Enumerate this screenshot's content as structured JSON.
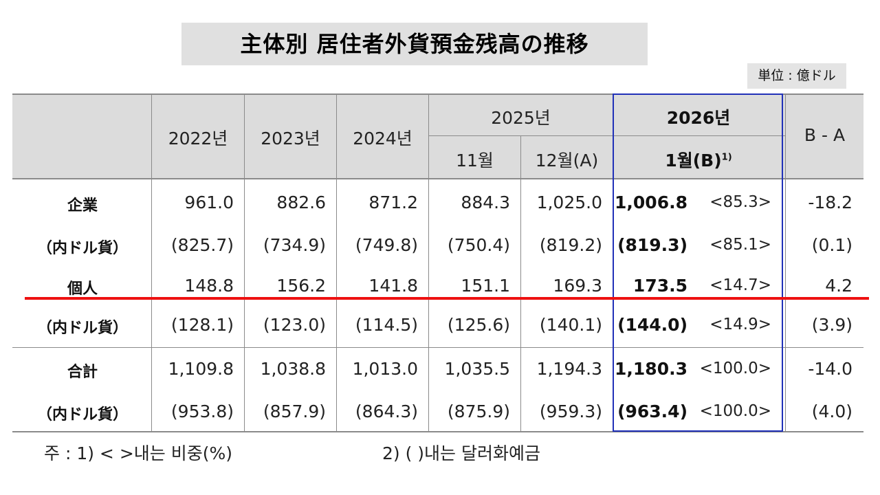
{
  "title": "主体別 居住者外貨預金残高の推移",
  "unit": "単位 : 億ドル",
  "header": {
    "y2022": "2022년",
    "y2023": "2023년",
    "y2024": "2024년",
    "y2025": "2025년",
    "nov": "11월",
    "dec": "12월(A)",
    "y2026": "2026년",
    "jan": "1월(B)",
    "jan_sup": "1)",
    "diff": "B - A"
  },
  "rows": [
    {
      "label": "企業",
      "v2022": "961.0",
      "v2023": "882.6",
      "v2024": "871.2",
      "nov": "884.3",
      "dec": "1,025.0",
      "jan": "1,006.8",
      "share": "<85.3>",
      "diff": "-18.2"
    },
    {
      "label": "（内ドル貨）",
      "v2022": "(825.7)",
      "v2023": "(734.9)",
      "v2024": "(749.8)",
      "nov": "(750.4)",
      "dec": "(819.2)",
      "jan": "(819.3)",
      "share": "<85.1>",
      "diff": "(0.1)"
    },
    {
      "label": "個人",
      "v2022": "148.8",
      "v2023": "156.2",
      "v2024": "141.8",
      "nov": "151.1",
      "dec": "169.3",
      "jan": "173.5",
      "share": "<14.7>",
      "diff": "4.2"
    },
    {
      "label": "（内ドル貨）",
      "v2022": "(128.1)",
      "v2023": "(123.0)",
      "v2024": "(114.5)",
      "nov": "(125.6)",
      "dec": "(140.1)",
      "jan": "(144.0)",
      "share": "<14.9>",
      "diff": "(3.9)"
    },
    {
      "label": "合計",
      "v2022": "1,109.8",
      "v2023": "1,038.8",
      "v2024": "1,013.0",
      "nov": "1,035.5",
      "dec": "1,194.3",
      "jan": "1,180.3",
      "share": "<100.0>",
      "diff": "-14.0"
    },
    {
      "label": "（内ドル貨）",
      "v2022": "(953.8)",
      "v2023": "(857.9)",
      "v2024": "(864.3)",
      "nov": "(875.9)",
      "dec": "(959.3)",
      "jan": "(963.4)",
      "share": "<100.0>",
      "diff": "(4.0)"
    }
  ],
  "notes": {
    "note1": "주 : 1) <   >내는 비중(%)",
    "note2": "2) (   )내는 달러화예금"
  },
  "colors": {
    "highlight_box": "#2030b8",
    "red_line": "#ee1111",
    "header_bg": "#dcdcdc"
  }
}
